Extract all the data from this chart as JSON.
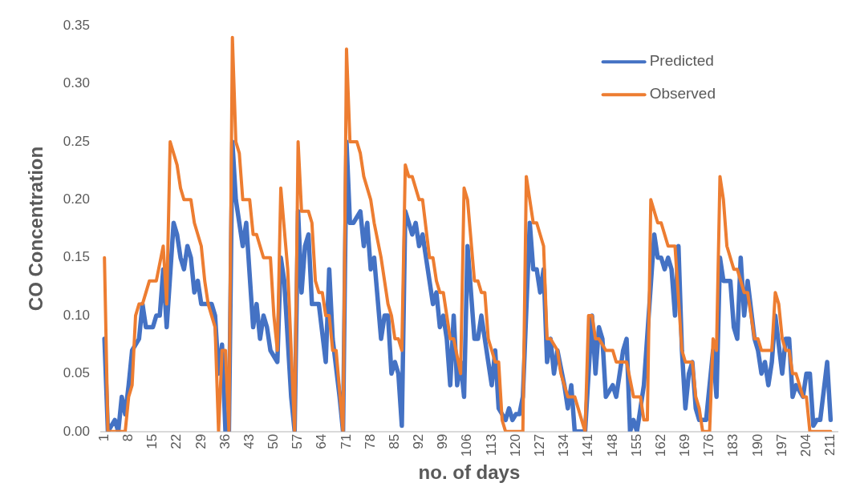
{
  "chart_data": {
    "type": "line",
    "xlabel": "no. of days",
    "ylabel": "CO Concentration",
    "xlim": [
      0,
      213
    ],
    "ylim": [
      0,
      0.35
    ],
    "xticks": [
      1,
      8,
      15,
      22,
      29,
      36,
      43,
      50,
      57,
      64,
      71,
      78,
      85,
      92,
      99,
      106,
      113,
      120,
      127,
      134,
      141,
      148,
      155,
      162,
      169,
      176,
      183,
      190,
      197,
      204,
      211
    ],
    "yticks": [
      {
        "value": 0,
        "label": "0.00"
      },
      {
        "value": 0.05,
        "label": "0.05"
      },
      {
        "value": 0.1,
        "label": "0.10"
      },
      {
        "value": 0.15,
        "label": "0.15"
      },
      {
        "value": 0.2,
        "label": "0.20"
      },
      {
        "value": 0.25,
        "label": "0.25"
      },
      {
        "value": 0.3,
        "label": "0.30"
      },
      {
        "value": 0.35,
        "label": "0.35"
      }
    ],
    "grid": false,
    "legend": "top right",
    "marker": "none",
    "line_style": "solid",
    "series": [
      {
        "name": "Predicted",
        "color": "#4472c4",
        "x": [
          1,
          2,
          3,
          4,
          5,
          6,
          7,
          8,
          9,
          11,
          12,
          13,
          15,
          16,
          17,
          18,
          19,
          21,
          22,
          23,
          24,
          25,
          26,
          27,
          28,
          29,
          30,
          32,
          33,
          34,
          35,
          36,
          37,
          38,
          39,
          41,
          42,
          44,
          45,
          46,
          47,
          48,
          49,
          51,
          52,
          53,
          55,
          56,
          57,
          58,
          59,
          60,
          61,
          63,
          65,
          66,
          67,
          69,
          70,
          71,
          72,
          73,
          75,
          76,
          77,
          78,
          79,
          81,
          82,
          83,
          84,
          85,
          86,
          87,
          88,
          90,
          91,
          92,
          93,
          95,
          96,
          97,
          98,
          99,
          100,
          101,
          102,
          103,
          104,
          105,
          106,
          108,
          109,
          110,
          112,
          113,
          114,
          115,
          117,
          118,
          119,
          120,
          121,
          122,
          124,
          125,
          126,
          127,
          128,
          129,
          130,
          131,
          132,
          134,
          135,
          136,
          137,
          140,
          142,
          143,
          144,
          145,
          146,
          148,
          149,
          151,
          152,
          153,
          154,
          155,
          157,
          160,
          161,
          162,
          163,
          164,
          165,
          166,
          167,
          168,
          169,
          170,
          171,
          172,
          173,
          174,
          175,
          177,
          178,
          179,
          180,
          181,
          182,
          183,
          184,
          185,
          186,
          187,
          189,
          190,
          191,
          192,
          193,
          194,
          195,
          197,
          198,
          199,
          200,
          201,
          203,
          204,
          205,
          206,
          207,
          208,
          210,
          211
        ],
        "values": [
          0.08,
          0,
          0.005,
          0.01,
          0,
          0.03,
          0.015,
          0.04,
          0.07,
          0.08,
          0.11,
          0.09,
          0.09,
          0.1,
          0.1,
          0.14,
          0.09,
          0.18,
          0.17,
          0.15,
          0.14,
          0.16,
          0.15,
          0.12,
          0.13,
          0.11,
          0.11,
          0.11,
          0.1,
          0.05,
          0.075,
          0,
          0,
          0.25,
          0.2,
          0.16,
          0.18,
          0.09,
          0.11,
          0.08,
          0.1,
          0.09,
          0.07,
          0.06,
          0.15,
          0.13,
          0.03,
          0,
          0.19,
          0.12,
          0.16,
          0.17,
          0.11,
          0.11,
          0.06,
          0.14,
          0.08,
          0.03,
          0,
          0.25,
          0.18,
          0.18,
          0.19,
          0.16,
          0.18,
          0.14,
          0.15,
          0.08,
          0.1,
          0.1,
          0.05,
          0.06,
          0.05,
          0.005,
          0.19,
          0.17,
          0.18,
          0.16,
          0.17,
          0.13,
          0.11,
          0.12,
          0.09,
          0.1,
          0.08,
          0.04,
          0.1,
          0.04,
          0.06,
          0.03,
          0.16,
          0.08,
          0.08,
          0.1,
          0.06,
          0.04,
          0.07,
          0.02,
          0.01,
          0.02,
          0.01,
          0.015,
          0.015,
          0.03,
          0.18,
          0.14,
          0.14,
          0.12,
          0.14,
          0.06,
          0.08,
          0.05,
          0.07,
          0.04,
          0.02,
          0.04,
          0,
          0,
          0.1,
          0.05,
          0.09,
          0.08,
          0.03,
          0.04,
          0.03,
          0.07,
          0.08,
          0,
          0.01,
          0,
          0.04,
          0.17,
          0.15,
          0.15,
          0.14,
          0.15,
          0.14,
          0.1,
          0.16,
          0.07,
          0.02,
          0.05,
          0.06,
          0.02,
          0.01,
          0.01,
          0.01,
          0.07,
          0.03,
          0.15,
          0.13,
          0.13,
          0.13,
          0.09,
          0.08,
          0.15,
          0.1,
          0.13,
          0.08,
          0.07,
          0.05,
          0.06,
          0.04,
          0.06,
          0.1,
          0.05,
          0.08,
          0.08,
          0.03,
          0.04,
          0.03,
          0.05,
          0.05,
          0.005,
          0.01,
          0.01,
          0.06,
          0.01
        ]
      },
      {
        "name": "Observed",
        "color": "#ed7d31",
        "x": [
          1,
          2,
          7,
          8,
          9,
          10,
          11,
          12,
          14,
          16,
          18,
          19,
          20,
          22,
          23,
          24,
          26,
          27,
          29,
          30,
          31,
          33,
          34,
          35,
          36,
          37,
          38,
          39,
          40,
          41,
          43,
          44,
          45,
          47,
          49,
          50,
          51,
          52,
          54,
          56,
          57,
          58,
          60,
          61,
          62,
          63,
          64,
          65,
          66,
          67,
          68,
          70,
          71,
          72,
          74,
          75,
          76,
          78,
          79,
          81,
          83,
          84,
          85,
          86,
          87,
          88,
          89,
          90,
          92,
          93,
          95,
          96,
          97,
          98,
          99,
          100,
          101,
          102,
          104,
          105,
          106,
          108,
          109,
          110,
          111,
          112,
          114,
          115,
          116,
          117,
          122,
          123,
          125,
          126,
          128,
          129,
          130,
          132,
          133,
          135,
          137,
          140,
          141,
          142,
          143,
          144,
          146,
          148,
          149,
          152,
          154,
          156,
          157,
          158,
          159,
          161,
          162,
          164,
          166,
          168,
          169,
          171,
          172,
          173,
          174,
          176,
          177,
          178,
          179,
          180,
          181,
          183,
          184,
          186,
          187,
          189,
          190,
          191,
          194,
          195,
          196,
          197,
          198,
          199,
          200,
          201,
          203,
          204,
          205,
          211
        ],
        "values": [
          0.15,
          0,
          0,
          0.03,
          0.04,
          0.1,
          0.11,
          0.11,
          0.13,
          0.13,
          0.16,
          0.11,
          0.25,
          0.23,
          0.21,
          0.2,
          0.2,
          0.18,
          0.16,
          0.13,
          0.11,
          0.09,
          0,
          0.07,
          0.07,
          0,
          0.34,
          0.25,
          0.24,
          0.2,
          0.2,
          0.17,
          0.17,
          0.15,
          0.15,
          0.1,
          0.07,
          0.21,
          0.14,
          0,
          0.25,
          0.19,
          0.19,
          0.18,
          0.13,
          0.12,
          0.12,
          0.1,
          0.1,
          0.07,
          0.07,
          0,
          0.33,
          0.25,
          0.25,
          0.24,
          0.22,
          0.2,
          0.18,
          0.15,
          0.11,
          0.1,
          0.08,
          0.08,
          0.07,
          0.23,
          0.22,
          0.22,
          0.2,
          0.2,
          0.15,
          0.15,
          0.13,
          0.12,
          0.12,
          0.1,
          0.08,
          0.08,
          0.05,
          0.21,
          0.2,
          0.13,
          0.13,
          0.12,
          0.12,
          0.08,
          0.06,
          0.06,
          0.01,
          0,
          0,
          0.22,
          0.18,
          0.18,
          0.16,
          0.08,
          0.08,
          0.07,
          0.05,
          0.03,
          0.03,
          0,
          0.1,
          0.1,
          0.08,
          0.08,
          0.07,
          0.07,
          0.06,
          0.06,
          0.03,
          0.03,
          0.01,
          0.01,
          0.2,
          0.18,
          0.18,
          0.16,
          0.16,
          0.07,
          0.06,
          0.06,
          0.03,
          0.02,
          0,
          0,
          0.08,
          0.07,
          0.22,
          0.2,
          0.16,
          0.14,
          0.14,
          0.12,
          0.12,
          0.08,
          0.08,
          0.07,
          0.07,
          0.12,
          0.11,
          0.08,
          0.07,
          0.07,
          0.05,
          0.05,
          0.03,
          0.03,
          0,
          0
        ]
      }
    ]
  }
}
